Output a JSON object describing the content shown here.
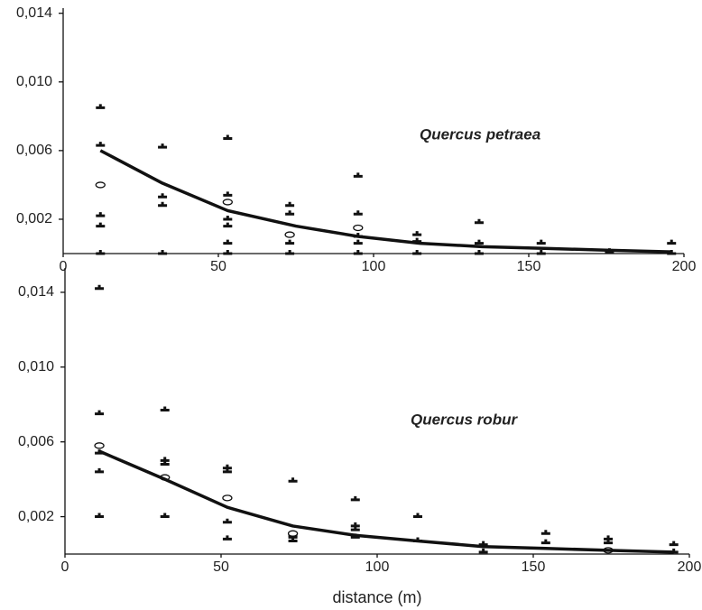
{
  "chart_data": [
    {
      "type": "scatter",
      "annotation": "Quercus petraea",
      "xlim": [
        0,
        200
      ],
      "xticks": [
        0,
        50,
        100,
        150,
        200
      ],
      "ylim": [
        0,
        0.0143
      ],
      "yticks": [
        {
          "value": 0.002,
          "label": "0,002"
        },
        {
          "value": 0.006,
          "label": "0,006"
        },
        {
          "value": 0.01,
          "label": "0,010"
        },
        {
          "value": 0.014,
          "label": "0,014"
        }
      ],
      "series": [
        {
          "marker": "plus",
          "color": "#111",
          "x": [
            12,
            12,
            12,
            12,
            12,
            32,
            32,
            32,
            32,
            53,
            53,
            53,
            53,
            53,
            53,
            73,
            73,
            73,
            73,
            95,
            95,
            95,
            95,
            95,
            114,
            114,
            114,
            134,
            134,
            134,
            154,
            154,
            176,
            196,
            196
          ],
          "values": [
            0.0085,
            0.0063,
            0.0022,
            0.0016,
            0,
            0.0062,
            0.0033,
            0.0028,
            0,
            0.0067,
            0.0034,
            0.002,
            0.0016,
            0.0006,
            0,
            0.0028,
            0.0023,
            0.0006,
            0,
            0.0045,
            0.0023,
            0.001,
            0.0006,
            0,
            0.0011,
            0.0007,
            0,
            0.0018,
            0.0006,
            0,
            0.0006,
            0,
            0.0001,
            0.0006,
            0
          ]
        },
        {
          "marker": "ellipse",
          "color": "#111",
          "x": [
            12,
            53,
            73,
            95
          ],
          "values": [
            0.004,
            0.003,
            0.0011,
            0.0015
          ]
        },
        {
          "marker": "line",
          "color": "#111",
          "x": [
            12,
            32,
            53,
            75,
            95,
            115,
            135,
            155,
            175,
            196
          ],
          "values": [
            0.006,
            0.0041,
            0.0025,
            0.0016,
            0.001,
            0.0006,
            0.0004,
            0.0003,
            0.0002,
            0.0001
          ]
        }
      ]
    },
    {
      "type": "scatter",
      "annotation": "Quercus robur",
      "x_label": "distance  (m)",
      "xlim": [
        0,
        200
      ],
      "xticks": [
        0,
        50,
        100,
        150,
        200
      ],
      "ylim": [
        0,
        0.0153
      ],
      "yticks": [
        {
          "value": 0.002,
          "label": "0,002"
        },
        {
          "value": 0.006,
          "label": "0,006"
        },
        {
          "value": 0.01,
          "label": "0,010"
        },
        {
          "value": 0.014,
          "label": "0,014"
        }
      ],
      "series": [
        {
          "marker": "plus",
          "color": "#111",
          "x": [
            11,
            11,
            11,
            11,
            11,
            32,
            32,
            32,
            32,
            52,
            52,
            52,
            52,
            73,
            73,
            73,
            73,
            93,
            93,
            93,
            93,
            113,
            113,
            134,
            134,
            154,
            154,
            174,
            174,
            195,
            195
          ],
          "values": [
            0.0142,
            0.0075,
            0.0054,
            0.0044,
            0.002,
            0.0077,
            0.005,
            0.0048,
            0.002,
            0.0046,
            0.0044,
            0.0017,
            0.0008,
            0.0039,
            0.001,
            0.0009,
            0.0007,
            0.0029,
            0.0015,
            0.0013,
            0.0009,
            0.002,
            0.0007,
            0.0005,
            0.0001,
            0.0011,
            0.0006,
            0.0008,
            0.0006,
            0.0005,
            0.0001
          ]
        },
        {
          "marker": "ellipse",
          "color": "#111",
          "x": [
            11,
            32,
            52,
            73,
            174
          ],
          "values": [
            0.0058,
            0.0041,
            0.003,
            0.0011,
            0.0002
          ]
        },
        {
          "marker": "line",
          "color": "#111",
          "x": [
            11,
            32,
            52,
            73,
            93,
            113,
            134,
            154,
            174,
            195
          ],
          "values": [
            0.0055,
            0.004,
            0.0025,
            0.0015,
            0.001,
            0.0007,
            0.0004,
            0.0003,
            0.0002,
            0.0001
          ]
        }
      ]
    }
  ]
}
